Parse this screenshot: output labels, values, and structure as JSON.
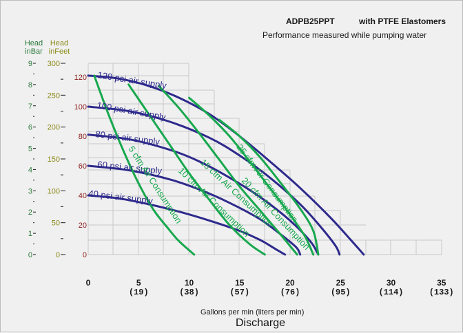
{
  "chart_data": {
    "type": "line",
    "title": "ADPB25PPT",
    "title_suffix": "with PTFE Elastomers",
    "subtitle": "Performance measured while pumping water",
    "xlabel": "Gallons per min (liters per min)",
    "xlabel_main": "Discharge",
    "xlim": [
      0,
      35
    ],
    "x_ticks": [
      {
        "value": 0,
        "label": "0",
        "sub": ""
      },
      {
        "value": 5,
        "label": "5",
        "sub": "(19)"
      },
      {
        "value": 10,
        "label": "10",
        "sub": "(38)"
      },
      {
        "value": 15,
        "label": "15",
        "sub": "(57)"
      },
      {
        "value": 20,
        "label": "20",
        "sub": "(76)"
      },
      {
        "value": 25,
        "label": "25",
        "sub": "(95)"
      },
      {
        "value": 30,
        "label": "30",
        "sub": "(114)"
      },
      {
        "value": 35,
        "label": "35",
        "sub": "(133)"
      }
    ],
    "y_axes": [
      {
        "header": [
          "Head",
          "inBar"
        ],
        "color": "#2a7a3a",
        "ticks": [
          "0",
          "1",
          "2",
          "3",
          "4",
          "5",
          "6",
          "7",
          "8",
          "9"
        ]
      },
      {
        "header": [
          "Head",
          "inFeet"
        ],
        "color": "#8a8a18",
        "ticks": [
          "0",
          "50",
          "100",
          "150",
          "200",
          "250",
          "300"
        ]
      },
      {
        "header": [],
        "color": "#8b1a1a",
        "ticks": [
          "0",
          "20",
          "40",
          "60",
          "80",
          "100",
          "120"
        ]
      }
    ],
    "ylim_psi": [
      0,
      120
    ],
    "grid": true,
    "series_pressure": [
      {
        "name": "120 psi air supply",
        "color": "#2e2a8c",
        "points": [
          [
            0,
            121
          ],
          [
            3,
            119
          ],
          [
            6,
            114
          ],
          [
            9,
            106
          ],
          [
            12,
            95
          ],
          [
            15,
            80
          ],
          [
            18,
            63
          ],
          [
            21,
            45
          ],
          [
            24,
            25
          ],
          [
            26,
            10
          ],
          [
            27.3,
            0
          ]
        ]
      },
      {
        "name": "100 psi air supply",
        "color": "#2e2a8c",
        "points": [
          [
            0,
            100
          ],
          [
            4,
            97
          ],
          [
            8,
            90
          ],
          [
            12,
            79
          ],
          [
            15,
            67
          ],
          [
            18,
            52
          ],
          [
            21,
            34
          ],
          [
            23,
            19
          ],
          [
            24.5,
            6
          ],
          [
            24.9,
            0
          ]
        ]
      },
      {
        "name": "80 psi air supply",
        "color": "#2e2a8c",
        "points": [
          [
            0,
            81
          ],
          [
            4,
            78
          ],
          [
            8,
            71
          ],
          [
            11,
            63
          ],
          [
            14,
            52
          ],
          [
            17,
            39
          ],
          [
            20,
            23
          ],
          [
            22,
            9
          ],
          [
            22.8,
            0
          ]
        ]
      },
      {
        "name": "60 psi air supply",
        "color": "#2e2a8c",
        "points": [
          [
            0,
            60
          ],
          [
            4,
            57
          ],
          [
            8,
            51
          ],
          [
            11,
            44
          ],
          [
            14,
            35
          ],
          [
            17,
            24
          ],
          [
            19,
            14
          ],
          [
            20.6,
            5
          ],
          [
            21,
            0
          ]
        ]
      },
      {
        "name": "40 psi air supply",
        "color": "#2e2a8c",
        "points": [
          [
            0,
            40
          ],
          [
            3,
            38
          ],
          [
            6,
            34
          ],
          [
            9,
            29
          ],
          [
            12,
            23
          ],
          [
            15,
            16
          ],
          [
            17,
            10
          ],
          [
            18.5,
            4
          ],
          [
            19.5,
            0
          ]
        ]
      }
    ],
    "series_air": [
      {
        "name": "5 cfm Air Consumption",
        "color": "#18a84e",
        "points": [
          [
            0.6,
            121
          ],
          [
            2,
            95
          ],
          [
            3.5,
            70
          ],
          [
            5,
            48
          ],
          [
            6.5,
            30
          ],
          [
            8,
            17
          ],
          [
            9,
            9
          ],
          [
            10.5,
            0
          ]
        ]
      },
      {
        "name": "10 cfm Air Consumption",
        "color": "#18a84e",
        "points": [
          [
            4,
            115
          ],
          [
            6,
            95
          ],
          [
            8,
            75
          ],
          [
            10,
            55
          ],
          [
            12,
            37
          ],
          [
            14,
            20
          ],
          [
            16,
            7
          ],
          [
            17.5,
            0
          ]
        ]
      },
      {
        "name": "15 cfm Air Consumption",
        "color": "#18a84e",
        "points": [
          [
            7,
            114
          ],
          [
            9,
            99
          ],
          [
            11,
            82
          ],
          [
            13,
            64
          ],
          [
            15,
            46
          ],
          [
            17,
            30
          ],
          [
            19,
            14
          ],
          [
            20.7,
            0
          ]
        ]
      },
      {
        "name": "20 cfm Air Consumption",
        "color": "#18a84e",
        "points": [
          [
            10,
            106
          ],
          [
            12,
            94
          ],
          [
            14,
            80
          ],
          [
            16,
            63
          ],
          [
            18,
            45
          ],
          [
            20,
            27
          ],
          [
            21.5,
            12
          ],
          [
            22.3,
            0
          ]
        ]
      },
      {
        "name": "25 cfm Air Consumption",
        "color": "#18a84e",
        "points": [
          [
            13,
            91
          ],
          [
            15,
            80
          ],
          [
            17,
            66
          ],
          [
            19,
            49
          ],
          [
            21,
            31
          ],
          [
            22.3,
            16
          ],
          [
            22.8,
            0
          ]
        ]
      }
    ]
  },
  "labels": {
    "p120": "120 psi air supply",
    "p100": "100 psi air supply",
    "p80": "80 psi air supply",
    "p60": "60 psi air supply",
    "p40": "40 psi air supply",
    "c5": "5 cfm Air Consumption",
    "c10": "10 cfm Air Consumption",
    "c15": "15 cfm Air Consumption",
    "c20": "20 cfm Air Consumption",
    "c25": "25 cfm Air Consumption"
  }
}
